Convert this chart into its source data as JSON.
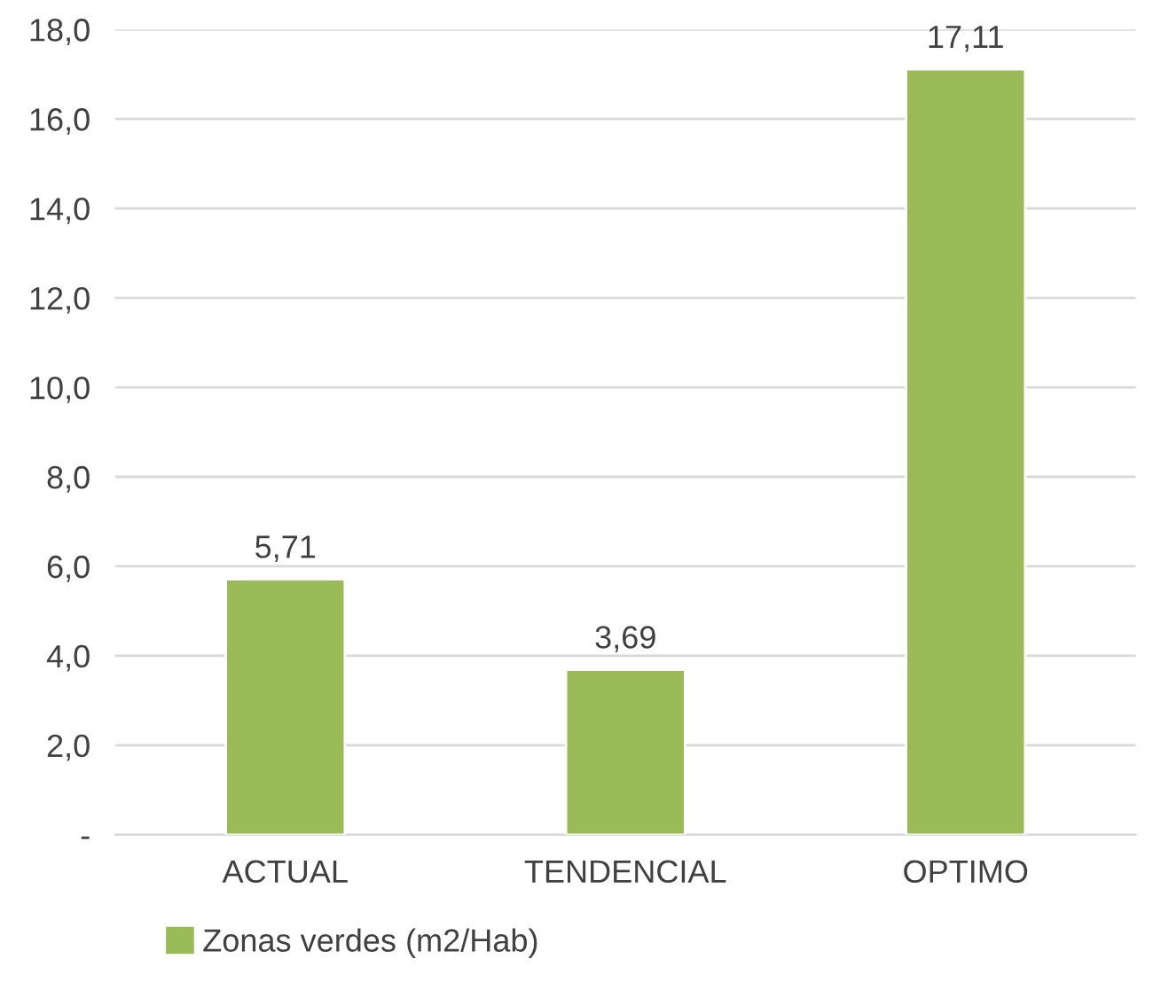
{
  "chart_data": {
    "type": "bar",
    "categories": [
      "ACTUAL",
      "TENDENCIAL",
      "OPTIMO"
    ],
    "series": [
      {
        "name": "Zonas verdes (m2/Hab)",
        "color": "#9bbb59",
        "values": [
          5.71,
          3.69,
          17.11
        ],
        "value_labels": [
          "5,71",
          "3,69",
          "17,11"
        ]
      }
    ],
    "ylim": [
      0,
      18
    ],
    "yticks": [
      {
        "value": 0,
        "label": "-"
      },
      {
        "value": 2,
        "label": "2,0"
      },
      {
        "value": 4,
        "label": "4,0"
      },
      {
        "value": 6,
        "label": "6,0"
      },
      {
        "value": 8,
        "label": "8,0"
      },
      {
        "value": 10,
        "label": "10,0"
      },
      {
        "value": 12,
        "label": "12,0"
      },
      {
        "value": 14,
        "label": "14,0"
      },
      {
        "value": 16,
        "label": "16,0"
      },
      {
        "value": 18,
        "label": "18,0"
      }
    ],
    "grid": "y",
    "legend": "bottom"
  }
}
